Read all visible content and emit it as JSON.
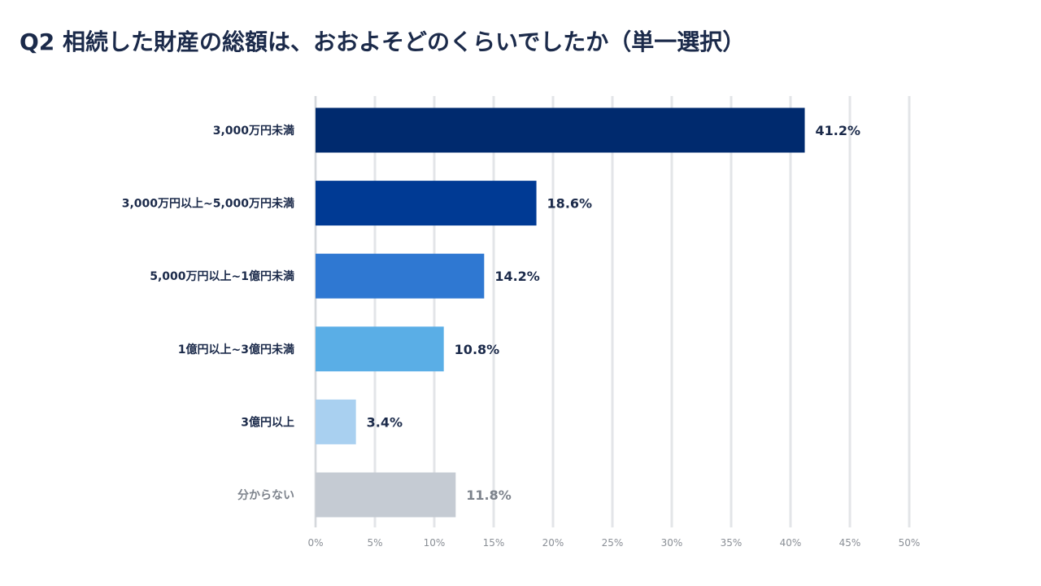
{
  "title": "Q2  相続した財産の総額は、おおよそどのくらいでしたか（単一選択）",
  "chart_data": {
    "type": "bar",
    "orientation": "horizontal",
    "categories": [
      "3,000万円未満",
      "3,000万円以上~5,000万円未満",
      "5,000万円以上~1億円未満",
      "1億円以上~3億円未満",
      "3億円以上",
      "分からない"
    ],
    "values": [
      41.2,
      18.6,
      14.2,
      10.8,
      3.4,
      11.8
    ],
    "value_labels": [
      "41.2%",
      "18.6%",
      "14.2%",
      "10.8%",
      "3.4%",
      "11.8%"
    ],
    "bar_colors": [
      "#002a6e",
      "#003a94",
      "#2f78d2",
      "#5aaee6",
      "#a9d0f0",
      "#c5cbd3"
    ],
    "muted_label_index": 5,
    "xlim": [
      0,
      50
    ],
    "ticks": [
      0,
      5,
      10,
      15,
      20,
      25,
      30,
      35,
      40,
      45,
      50
    ],
    "tick_labels": [
      "0%",
      "5%",
      "10%",
      "15%",
      "20%",
      "25%",
      "30%",
      "35%",
      "40%",
      "45%",
      "50%"
    ],
    "grid": true,
    "title": "Q2  相続した財産の総額は、おおよそどのくらいでしたか（単一選択）",
    "xlabel": "",
    "ylabel": ""
  }
}
